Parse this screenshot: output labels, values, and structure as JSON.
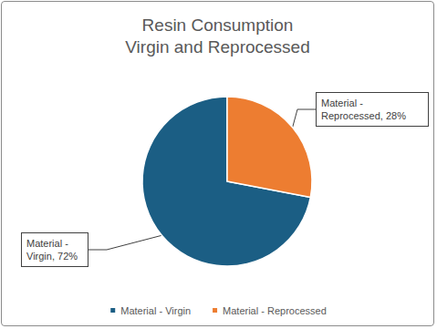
{
  "chart_data": {
    "type": "pie",
    "title": "Resin Consumption\nVirgin and Reprocessed",
    "categories": [
      "Material - Virgin",
      "Material - Reprocessed"
    ],
    "values": [
      72,
      28
    ],
    "value_labels": [
      "Material - Virgin, 72%",
      "Material - Reprocessed, 28%"
    ],
    "colors": [
      "#1b5e84",
      "#ed7d31"
    ],
    "data_labels": true,
    "legend": "bottom"
  }
}
